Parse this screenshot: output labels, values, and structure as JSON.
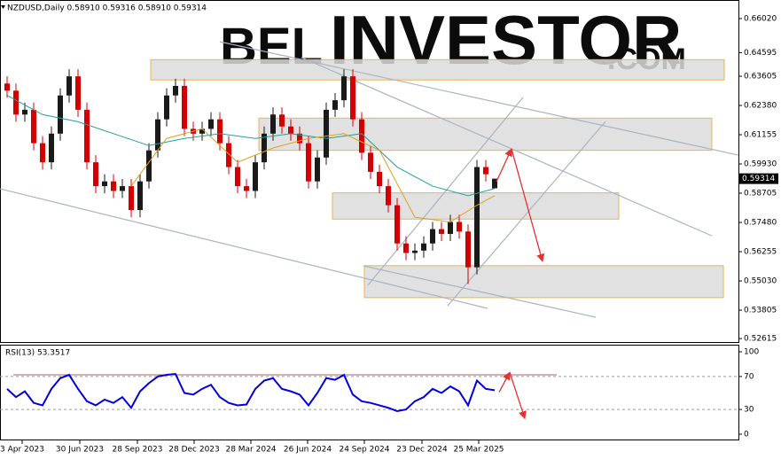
{
  "chart_data": [
    {
      "type": "candlestick",
      "title": "NZDUSD,Daily  0.58910 0.59316 0.58910 0.59314",
      "watermark": [
        "BEL",
        "INVESTOR",
        ".COM"
      ],
      "up_color": "#1a1a1a",
      "down_color": "#d40000",
      "xlim": [
        -0.8,
        82.5
      ],
      "ylim": [
        0.5247,
        0.6665
      ],
      "xticks": [
        {
          "value": 1.7,
          "label": "3 Apr 2023"
        },
        {
          "value": 8.2,
          "label": "30 Jun 2023"
        },
        {
          "value": 14.7,
          "label": "28 Sep 2023"
        },
        {
          "value": 21.1,
          "label": "28 Dec 2023"
        },
        {
          "value": 27.5,
          "label": "28 Mar 2024"
        },
        {
          "value": 33.9,
          "label": "26 Jun 2024"
        },
        {
          "value": 40.3,
          "label": "24 Sep 2024"
        },
        {
          "value": 46.8,
          "label": "23 Dec 2024"
        },
        {
          "value": 53.2,
          "label": "25 Mar 2025"
        }
      ],
      "yticks": [
        {
          "value": 0.6602,
          "label": "0.66020"
        },
        {
          "value": 0.64595,
          "label": "0.64595"
        },
        {
          "value": 0.63605,
          "label": "0.63605"
        },
        {
          "value": 0.6238,
          "label": "0.62380"
        },
        {
          "value": 0.61155,
          "label": "0.61155"
        },
        {
          "value": 0.5993,
          "label": "0.59930"
        },
        {
          "value": 0.58705,
          "label": "0.58705"
        },
        {
          "value": 0.5748,
          "label": "0.57480"
        },
        {
          "value": 0.56255,
          "label": "0.56255"
        },
        {
          "value": 0.5503,
          "label": "0.55030"
        },
        {
          "value": 0.53805,
          "label": "0.53805"
        },
        {
          "value": 0.52615,
          "label": "0.52615"
        }
      ],
      "last_price": {
        "value": 0.59314,
        "label": "0.59314"
      },
      "open": [
        0.633,
        0.63,
        0.62,
        0.622,
        0.608,
        0.6,
        0.612,
        0.628,
        0.636,
        0.622,
        0.6,
        0.59,
        0.592,
        0.588,
        0.59,
        0.58,
        0.592,
        0.605,
        0.618,
        0.628,
        0.632,
        0.614,
        0.612,
        0.614,
        0.618,
        0.608,
        0.598,
        0.59,
        0.588,
        0.6,
        0.612,
        0.62,
        0.615,
        0.612,
        0.608,
        0.592,
        0.602,
        0.622,
        0.626,
        0.636,
        0.618,
        0.604,
        0.596,
        0.59,
        0.582,
        0.566,
        0.562,
        0.563,
        0.566,
        0.572,
        0.57,
        0.575,
        0.571,
        0.556,
        0.598,
        0.5891
      ],
      "high": [
        0.636,
        0.633,
        0.625,
        0.625,
        0.611,
        0.615,
        0.631,
        0.639,
        0.639,
        0.625,
        0.603,
        0.595,
        0.595,
        0.593,
        0.593,
        0.595,
        0.608,
        0.621,
        0.631,
        0.635,
        0.635,
        0.617,
        0.617,
        0.621,
        0.621,
        0.611,
        0.601,
        0.593,
        0.603,
        0.615,
        0.623,
        0.623,
        0.618,
        0.615,
        0.611,
        0.605,
        0.625,
        0.629,
        0.639,
        0.639,
        0.621,
        0.607,
        0.599,
        0.593,
        0.585,
        0.569,
        0.566,
        0.569,
        0.575,
        0.575,
        0.578,
        0.578,
        0.574,
        0.601,
        0.601,
        0.59316
      ],
      "low": [
        0.627,
        0.617,
        0.617,
        0.605,
        0.597,
        0.597,
        0.609,
        0.625,
        0.619,
        0.597,
        0.587,
        0.587,
        0.585,
        0.585,
        0.577,
        0.577,
        0.589,
        0.602,
        0.615,
        0.625,
        0.611,
        0.609,
        0.609,
        0.611,
        0.605,
        0.595,
        0.587,
        0.585,
        0.585,
        0.597,
        0.609,
        0.612,
        0.609,
        0.605,
        0.589,
        0.589,
        0.599,
        0.619,
        0.623,
        0.615,
        0.601,
        0.593,
        0.587,
        0.579,
        0.563,
        0.559,
        0.559,
        0.56,
        0.563,
        0.567,
        0.567,
        0.568,
        0.549,
        0.553,
        0.592,
        0.5891
      ],
      "close": [
        0.63,
        0.62,
        0.622,
        0.608,
        0.6,
        0.612,
        0.628,
        0.636,
        0.622,
        0.6,
        0.59,
        0.592,
        0.588,
        0.59,
        0.58,
        0.592,
        0.605,
        0.618,
        0.628,
        0.632,
        0.614,
        0.612,
        0.614,
        0.618,
        0.608,
        0.598,
        0.59,
        0.588,
        0.6,
        0.612,
        0.62,
        0.615,
        0.612,
        0.608,
        0.592,
        0.602,
        0.622,
        0.626,
        0.636,
        0.618,
        0.604,
        0.596,
        0.59,
        0.582,
        0.566,
        0.562,
        0.563,
        0.566,
        0.572,
        0.57,
        0.575,
        0.571,
        0.556,
        0.598,
        0.595,
        0.59314
      ],
      "series": [
        {
          "color": "#20a0a0",
          "x": [
            0,
            4,
            8,
            12,
            16,
            20,
            24,
            28,
            32,
            36,
            40,
            44,
            48,
            52,
            55
          ],
          "values": [
            0.628,
            0.62,
            0.617,
            0.612,
            0.607,
            0.61,
            0.612,
            0.61,
            0.612,
            0.61,
            0.612,
            0.598,
            0.59,
            0.586,
            0.589
          ]
        },
        {
          "color": "#e0a020",
          "x": [
            14,
            18,
            22,
            26,
            30,
            34,
            38,
            42,
            46,
            50,
            53,
            55
          ],
          "values": [
            0.59,
            0.61,
            0.614,
            0.6,
            0.606,
            0.61,
            0.612,
            0.605,
            0.577,
            0.575,
            0.582,
            0.586
          ]
        }
      ],
      "zones": [
        {
          "x": [
            16.2,
            80.9
          ],
          "y": [
            0.6345,
            0.643
          ]
        },
        {
          "x": [
            28.4,
            79.5
          ],
          "y": [
            0.605,
            0.6185
          ]
        },
        {
          "x": [
            36.7,
            69
          ],
          "y": [
            0.5762,
            0.5872
          ]
        },
        {
          "x": [
            40.3,
            80.8
          ],
          "y": [
            0.5433,
            0.5567
          ]
        }
      ],
      "trend_lines": [
        {
          "x": [
            24,
            82.5
          ],
          "y": [
            0.6505,
            0.603
          ]
        },
        {
          "x": [
            33.2,
            79.5
          ],
          "y": [
            0.6439,
            0.5692
          ]
        },
        {
          "x": [
            -0.8,
            54.2
          ],
          "y": [
            0.5889,
            0.5388
          ]
        },
        {
          "x": [
            40.2,
            66.4
          ],
          "y": [
            0.5566,
            0.5351
          ]
        },
        {
          "x": [
            40.7,
            58.2
          ],
          "y": [
            0.5485,
            0.6272
          ]
        },
        {
          "x": [
            49.7,
            67.5
          ],
          "y": [
            0.5399,
            0.6171
          ]
        }
      ],
      "arrows": [
        {
          "x": [
            55.2,
            56.9
          ],
          "y": [
            0.5919,
            0.6056
          ]
        },
        {
          "x": [
            56.9,
            60.4
          ],
          "y": [
            0.6056,
            0.5585
          ]
        }
      ]
    },
    {
      "type": "line",
      "title": "RSI(13) 53.3517",
      "xlim": [
        -0.8,
        82.5
      ],
      "ylim": [
        -7.5,
        107.5
      ],
      "yticks": [
        100,
        70,
        30,
        0
      ],
      "levels": [
        70,
        30
      ],
      "series": [
        {
          "color": "#0000e0",
          "values": [
            55,
            45,
            52,
            38,
            35,
            55,
            68,
            72,
            55,
            40,
            35,
            42,
            38,
            45,
            32,
            52,
            62,
            70,
            72,
            73,
            50,
            48,
            55,
            60,
            45,
            38,
            35,
            36,
            55,
            65,
            68,
            55,
            52,
            48,
            35,
            50,
            68,
            66,
            72,
            48,
            40,
            38,
            35,
            32,
            28,
            30,
            40,
            45,
            55,
            50,
            58,
            52,
            35,
            65,
            55,
            53.3517
          ]
        }
      ],
      "trend_lines": [
        {
          "x": [
            0.7,
            62
          ],
          "y": [
            72,
            72
          ]
        }
      ],
      "arrows": [
        {
          "x": [
            55.5,
            56.7
          ],
          "y": [
            51,
            75
          ]
        },
        {
          "x": [
            56.7,
            58.4
          ],
          "y": [
            75,
            19
          ]
        }
      ]
    }
  ]
}
